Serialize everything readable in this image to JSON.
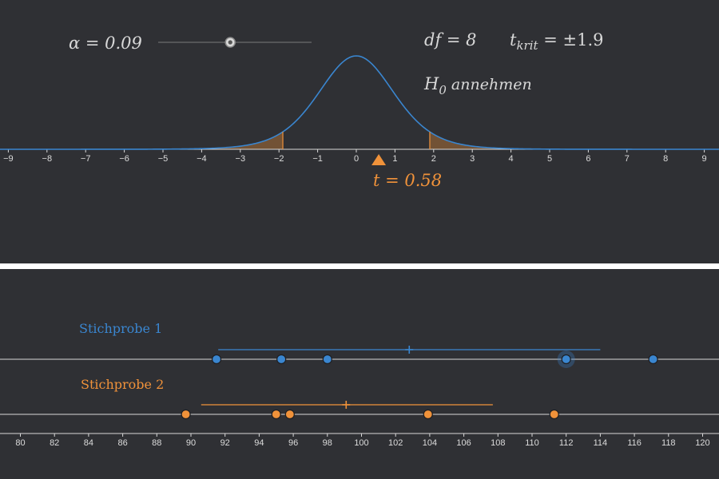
{
  "colors": {
    "background": "#2f3034",
    "divider": "#ffffff",
    "axis": "#d9d9d9",
    "text": "#d8d8d8",
    "blue": "#3a86d0",
    "orange": "#f0923a"
  },
  "controls": {
    "alpha_label": "α = 0.09",
    "alpha_value": 0.09,
    "alpha_slider_position": 0.47
  },
  "stats": {
    "df_label": "df = 8",
    "tkrit_label_main": "t",
    "tkrit_label_sub": "krit",
    "tkrit_label_rest": " = ±1.9",
    "decision_main": "H",
    "decision_sub": "0",
    "decision_rest": " annehmen",
    "t_label": "t = 0.58"
  },
  "chart_data": [
    {
      "type": "line",
      "name": "t-distribution",
      "df": 8,
      "xlim": [
        -9.3,
        9.3
      ],
      "x_ticks": [
        -9,
        -8,
        -7,
        -6,
        -5,
        -4,
        -3,
        -2,
        -1,
        0,
        1,
        2,
        3,
        4,
        5,
        6,
        7,
        8,
        9
      ],
      "critical_value": 1.9,
      "t_value": 0.58
    },
    {
      "type": "scatter",
      "xlim": [
        79,
        121
      ],
      "x_ticks": [
        80,
        82,
        84,
        86,
        88,
        90,
        92,
        94,
        96,
        98,
        100,
        102,
        104,
        106,
        108,
        110,
        112,
        114,
        116,
        118,
        120
      ],
      "series": [
        {
          "name": "Stichprobe 1",
          "color": "blue",
          "values": [
            91.5,
            95.3,
            98.0,
            112.0,
            117.1
          ],
          "highlighted_index": 3,
          "mean": 102.8,
          "interval": [
            91.6,
            114.0
          ]
        },
        {
          "name": "Stichprobe 2",
          "color": "orange",
          "values": [
            89.7,
            95.0,
            95.8,
            103.9,
            111.3
          ],
          "mean": 99.1,
          "interval": [
            90.6,
            107.7
          ]
        }
      ]
    }
  ]
}
